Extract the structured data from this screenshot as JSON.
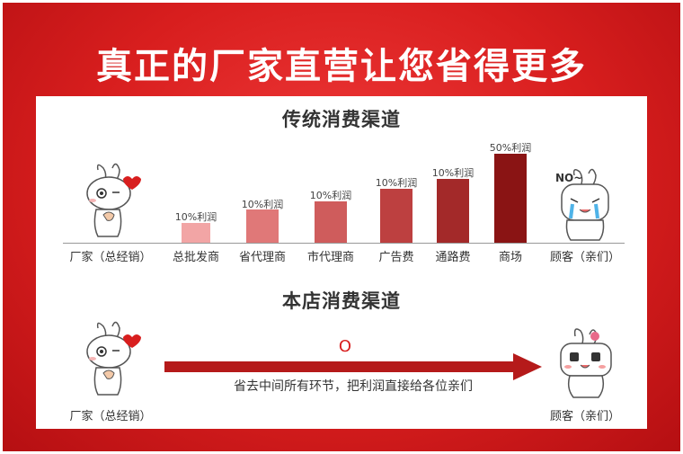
{
  "headline": "真正的厂家直营让您省得更多",
  "traditional": {
    "title": "传统消费渠道",
    "start_label": "厂家（总经销）",
    "end_label": "顾客（亲们）",
    "no_text": "NO~",
    "bars": [
      {
        "label": "总批发商",
        "profit": "10%利润",
        "color": "#f2a5a5"
      },
      {
        "label": "省代理商",
        "profit": "10%利润",
        "color": "#e07878"
      },
      {
        "label": "市代理商",
        "profit": "10%利润",
        "color": "#cf5c5c"
      },
      {
        "label": "广告费",
        "profit": "10%利润",
        "color": "#bd4040"
      },
      {
        "label": "通路费",
        "profit": "10%利润",
        "color": "#a32929"
      },
      {
        "label": "商场",
        "profit": "50%利润",
        "color": "#8a1414"
      }
    ]
  },
  "ours": {
    "title": "本店消费渠道",
    "start_label": "厂家（总经销）",
    "end_label": "顾客（亲们）",
    "zero_mark": "O",
    "arrow_caption": "省去中间所有环节，把利润直接给各位亲们"
  }
}
